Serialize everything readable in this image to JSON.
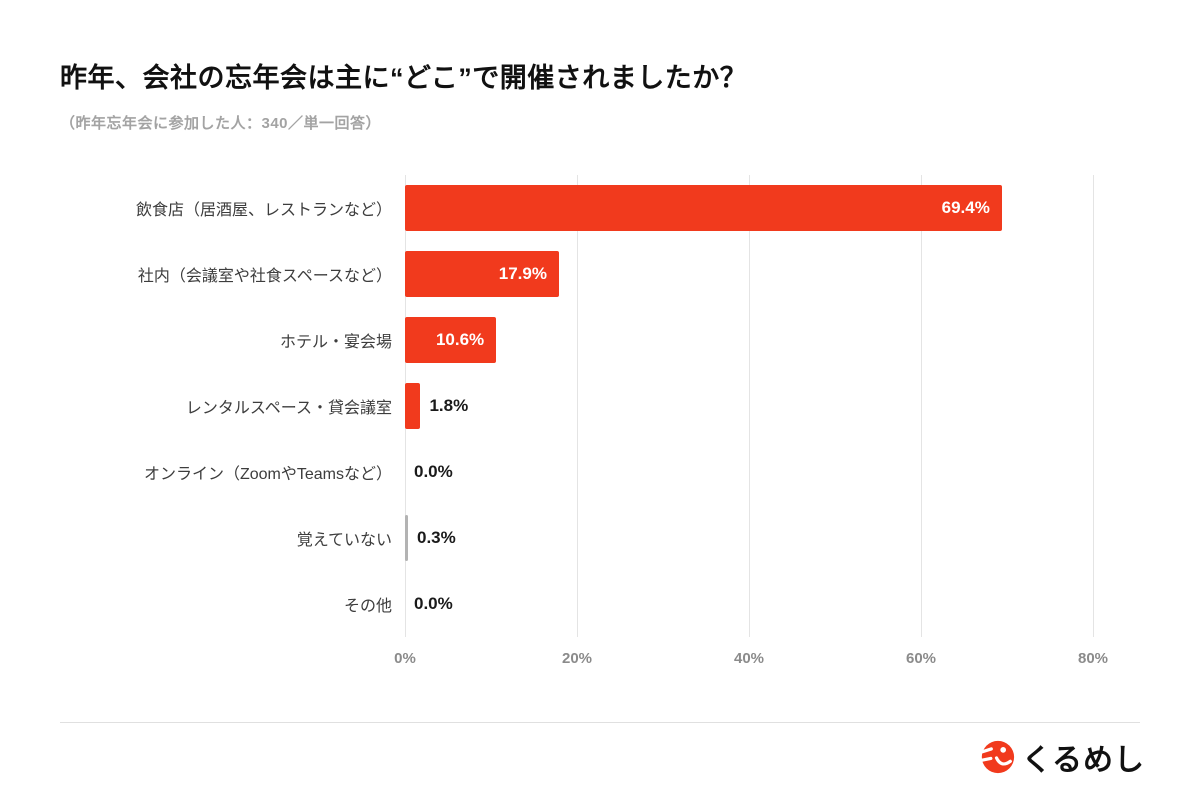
{
  "page": {
    "title": "昨年、会社の忘年会は主に“どこ”で開催されましたか？",
    "subtitle": "（昨年忘年会に参加した人：340／単一回答）"
  },
  "chart_data": {
    "type": "bar",
    "orientation": "horizontal",
    "title": "昨年、会社の忘年会は主に“どこ”で開催されましたか？",
    "subtitle": "（昨年忘年会に参加した人：340／単一回答）",
    "categories": [
      "飲食店（居酒屋、レストランなど）",
      "社内（会議室や社食スペースなど）",
      "ホテル・宴会場",
      "レンタルスペース・貸会議室",
      "オンライン（ZoomやTeamsなど）",
      "覚えていない",
      "その他"
    ],
    "values": [
      69.4,
      17.9,
      10.6,
      1.8,
      0.0,
      0.3,
      0.0
    ],
    "value_labels": [
      "69.4%",
      "17.9%",
      "10.6%",
      "1.8%",
      "0.0%",
      "0.3%",
      "0.0%"
    ],
    "xlim": [
      0,
      80
    ],
    "x_ticks": [
      "0%",
      "20%",
      "40%",
      "60%",
      "80%"
    ],
    "x_tick_values": [
      0,
      20,
      40,
      60,
      80
    ],
    "grid": true,
    "legend": "none",
    "bar_color": "#f13a1d",
    "muted_bar_color": "#b3b3b3",
    "muted_bar_indexes": [
      5
    ],
    "value_label_inside_color": "#ffffff",
    "value_label_outside_color": "#1a1a1a"
  },
  "footer": {
    "brand": "くるめし"
  }
}
